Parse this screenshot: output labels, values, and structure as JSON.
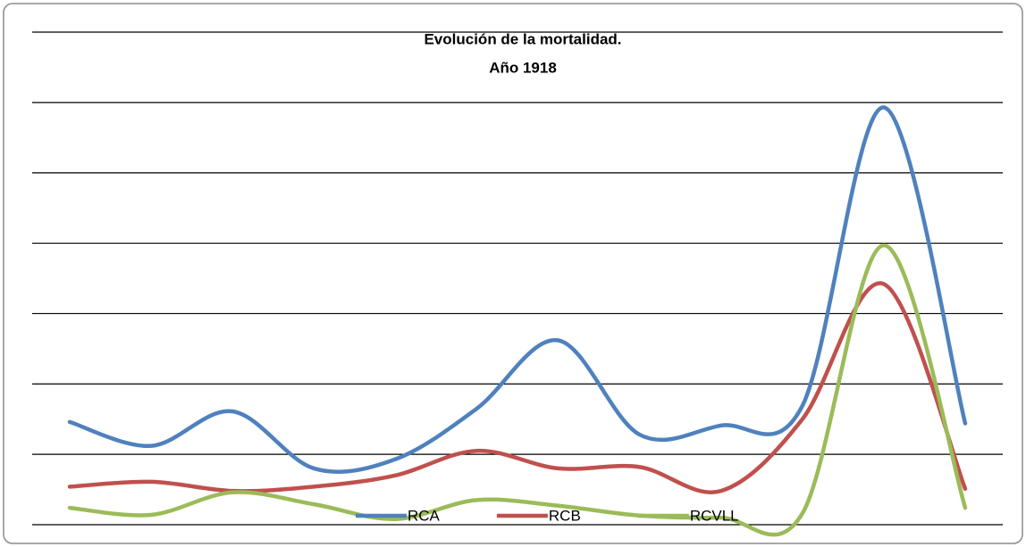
{
  "chart_data": {
    "type": "line",
    "title": "Evolución de la mortalidad.",
    "subtitle": "Año 1918",
    "categories": [
      null,
      null,
      null,
      null,
      null,
      null,
      null,
      null,
      null,
      null,
      null,
      null
    ],
    "series": [
      {
        "name": "RCA",
        "color": "#4f81bd",
        "values": [
          1.46,
          1.12,
          1.61,
          0.8,
          0.93,
          1.65,
          2.62,
          1.28,
          1.41,
          1.69,
          5.93,
          1.44
        ]
      },
      {
        "name": "RCB",
        "color": "#c0504d",
        "values": [
          0.54,
          0.61,
          0.48,
          0.54,
          0.7,
          1.05,
          0.8,
          0.82,
          0.48,
          1.5,
          3.42,
          0.51
        ]
      },
      {
        "name": "RCVLL",
        "color": "#9bbb59",
        "values": [
          0.24,
          0.14,
          0.46,
          0.29,
          0.08,
          0.35,
          0.27,
          0.13,
          0.1,
          0.16,
          3.97,
          0.24
        ]
      }
    ],
    "ylim": [
      0,
      7
    ],
    "yticks": [
      0,
      1,
      2,
      3,
      4,
      5,
      6,
      7
    ],
    "grid": true,
    "smooth": true,
    "legend": "bottom"
  }
}
